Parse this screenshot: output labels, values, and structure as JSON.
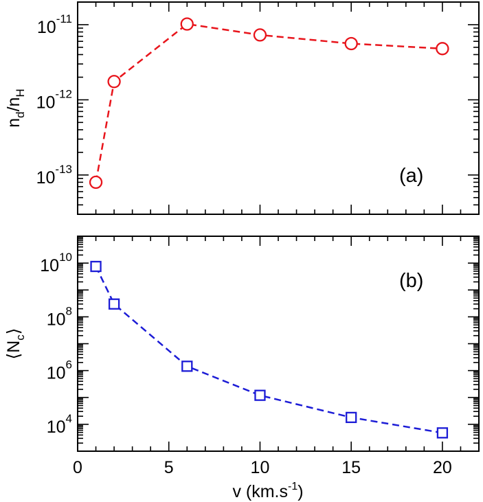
{
  "chart_data": [
    {
      "type": "line",
      "panel_label": "(a)",
      "ylabel": {
        "base": "n",
        "sub1": "d",
        "slash": "/n",
        "sub2": "H"
      },
      "y_scale": "log",
      "ylim": [
        3e-14,
        2e-11
      ],
      "xlim": [
        0,
        22
      ],
      "y_ticks": [
        {
          "value": 1e-13,
          "base": "10",
          "exp": "-13"
        },
        {
          "value": 1e-12,
          "base": "10",
          "exp": "-12"
        },
        {
          "value": 1e-11,
          "base": "10",
          "exp": "-11"
        }
      ],
      "series": [
        {
          "marker": "circle",
          "line_style": "dashed",
          "color": "#e8141b",
          "x": [
            1,
            2,
            6,
            10,
            15,
            20
          ],
          "y": [
            8e-14,
            1.75e-12,
            1.02e-11,
            7.3e-12,
            5.6e-12,
            4.8e-12
          ]
        }
      ]
    },
    {
      "type": "line",
      "panel_label": "(b)",
      "ylabel": {
        "left": "⟨N",
        "sub": "c",
        "right": "⟩"
      },
      "y_scale": "log",
      "ylim": [
        1000,
        100000000000.0
      ],
      "xlim": [
        0,
        22
      ],
      "xlabel": {
        "main": "v (km.s",
        "sup": "-1",
        "end": ")"
      },
      "x_ticks": [
        "0",
        "5",
        "10",
        "15",
        "20"
      ],
      "y_ticks": [
        {
          "value": 10000,
          "base": "10",
          "exp": "4"
        },
        {
          "value": 1000000,
          "base": "10",
          "exp": "6"
        },
        {
          "value": 100000000,
          "base": "10",
          "exp": "8"
        },
        {
          "value": 10000000000,
          "base": "10",
          "exp": "10"
        }
      ],
      "series": [
        {
          "marker": "square",
          "line_style": "dashed",
          "color": "#1c1cd6",
          "x": [
            1,
            2,
            6,
            10,
            15,
            20
          ],
          "y": [
            7500000000.0,
            300000000.0,
            1450000.0,
            120000.0,
            18000.0,
            4800.0
          ]
        }
      ]
    }
  ]
}
